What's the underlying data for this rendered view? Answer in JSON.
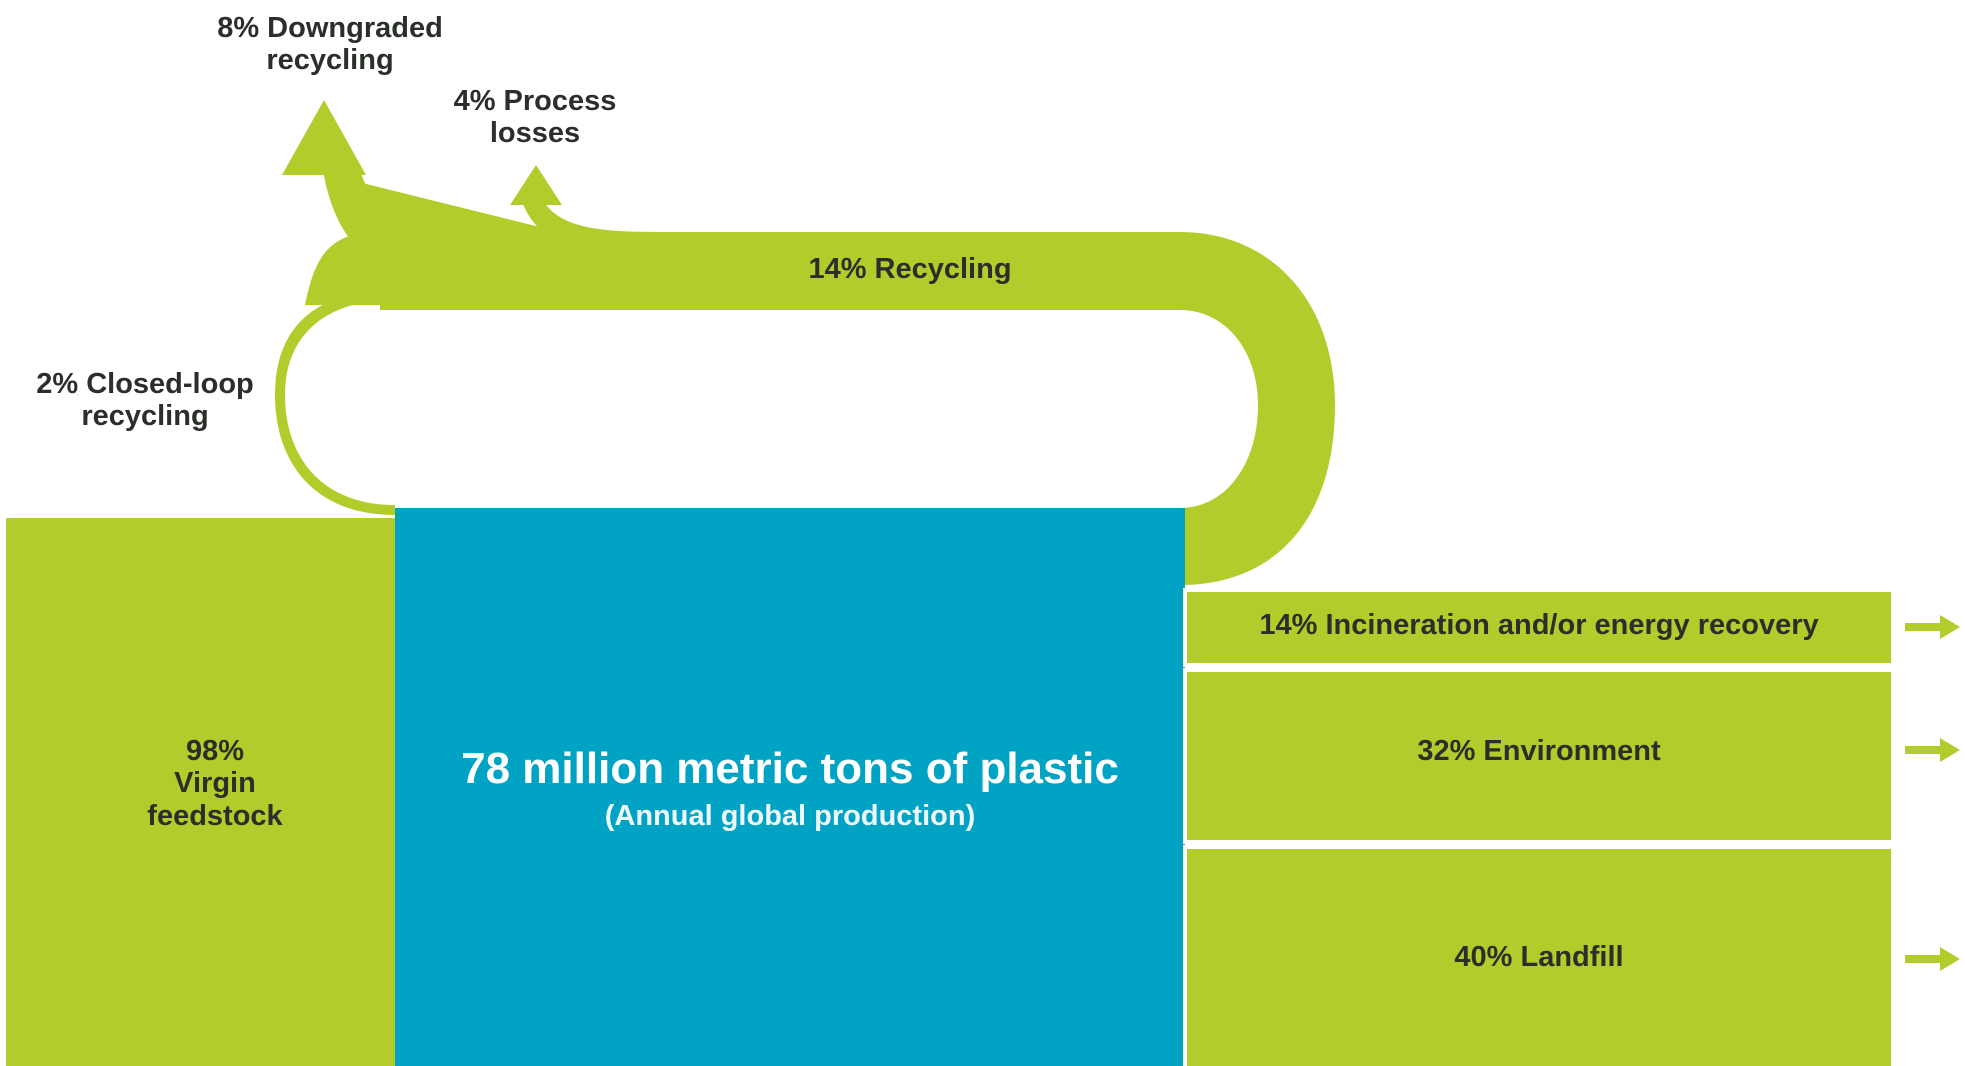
{
  "colors": {
    "green": "#b3cc2c",
    "blue": "#00a3c4",
    "divider": "#ffffff",
    "text": "#2b2f2a"
  },
  "flows": {
    "downgraded": {
      "percent": 8,
      "label_line1": "8% Downgraded",
      "label_line2": "recycling"
    },
    "process_losses": {
      "percent": 4,
      "label_line1": "4% Process",
      "label_line2": "losses"
    },
    "recycling": {
      "percent": 14,
      "label": "14% Recycling"
    },
    "closed_loop": {
      "percent": 2,
      "label_line1": "2% Closed-loop",
      "label_line2": "recycling"
    },
    "virgin": {
      "percent": 98,
      "label_line1": "98%",
      "label_line2": "Virgin",
      "label_line3": "feedstock"
    },
    "incineration": {
      "percent": 14,
      "label": "14% Incineration and/or energy recovery"
    },
    "environment": {
      "percent": 32,
      "label": "32% Environment"
    },
    "landfill": {
      "percent": 40,
      "label": "40% Landfill"
    }
  },
  "center": {
    "title": "78 million metric tons of plastic",
    "subtitle": "(Annual global production)"
  }
}
